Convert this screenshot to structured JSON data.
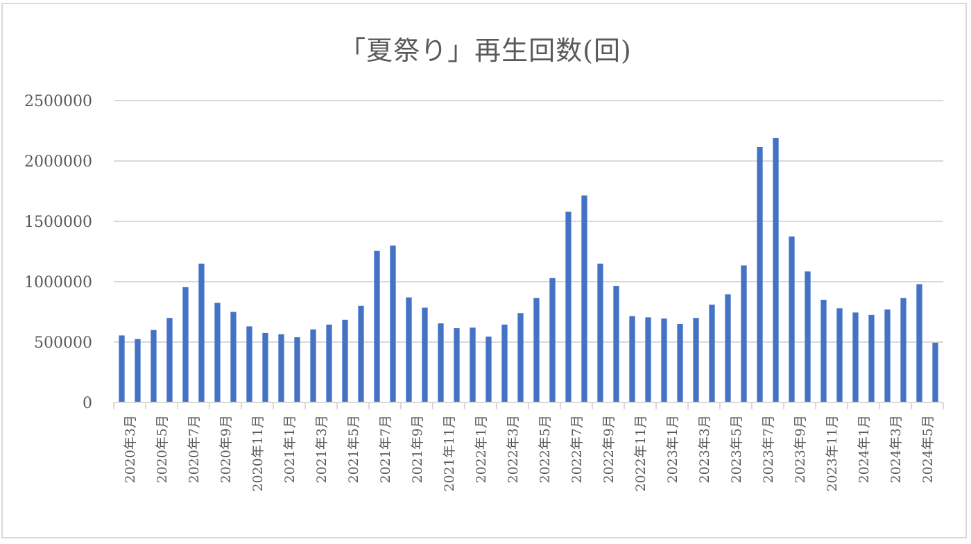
{
  "chart_data": {
    "type": "bar",
    "title": "「夏祭り」再生回数(回)",
    "xlabel": "",
    "ylabel": "",
    "ylim": [
      0,
      2500000
    ],
    "yticks": [
      0,
      500000,
      1000000,
      1500000,
      2000000,
      2500000
    ],
    "ytick_labels": [
      "0",
      "500000",
      "1000000",
      "1500000",
      "2000000",
      "2500000"
    ],
    "grid": true,
    "legend": null,
    "bar_color": "#4472c4",
    "categories": [
      "2020年3月",
      "2020年4月",
      "2020年5月",
      "2020年6月",
      "2020年7月",
      "2020年8月",
      "2020年9月",
      "2020年10月",
      "2020年11月",
      "2020年12月",
      "2021年1月",
      "2021年2月",
      "2021年3月",
      "2021年4月",
      "2021年5月",
      "2021年6月",
      "2021年7月",
      "2021年8月",
      "2021年9月",
      "2021年10月",
      "2021年11月",
      "2021年12月",
      "2022年1月",
      "2022年2月",
      "2022年3月",
      "2022年4月",
      "2022年5月",
      "2022年6月",
      "2022年7月",
      "2022年8月",
      "2022年9月",
      "2022年10月",
      "2022年11月",
      "2022年12月",
      "2023年1月",
      "2023年2月",
      "2023年3月",
      "2023年4月",
      "2023年5月",
      "2023年6月",
      "2023年7月",
      "2023年8月",
      "2023年9月",
      "2023年10月",
      "2023年11月",
      "2023年12月",
      "2024年1月",
      "2024年2月",
      "2024年3月",
      "2024年4月",
      "2024年5月",
      "2024年6月"
    ],
    "visible_tick_labels": [
      "2020年3月",
      "2020年5月",
      "2020年7月",
      "2020年9月",
      "2020年11月",
      "2021年1月",
      "2021年3月",
      "2021年5月",
      "2021年7月",
      "2021年9月",
      "2021年11月",
      "2022年1月",
      "2022年3月",
      "2022年5月",
      "2022年7月",
      "2022年9月",
      "2022年11月",
      "2023年1月",
      "2023年3月",
      "2023年5月",
      "2023年7月",
      "2023年9月",
      "2023年11月",
      "2024年1月",
      "2024年3月",
      "2024年5月"
    ],
    "values": [
      555000,
      525000,
      600000,
      700000,
      955000,
      1150000,
      825000,
      750000,
      630000,
      575000,
      565000,
      540000,
      605000,
      645000,
      685000,
      800000,
      1255000,
      1300000,
      870000,
      785000,
      655000,
      615000,
      620000,
      545000,
      645000,
      740000,
      865000,
      1030000,
      1580000,
      1715000,
      1150000,
      965000,
      715000,
      705000,
      695000,
      650000,
      700000,
      810000,
      895000,
      1135000,
      2115000,
      2190000,
      1375000,
      1085000,
      850000,
      780000,
      745000,
      725000,
      770000,
      865000,
      980000,
      495000
    ]
  }
}
